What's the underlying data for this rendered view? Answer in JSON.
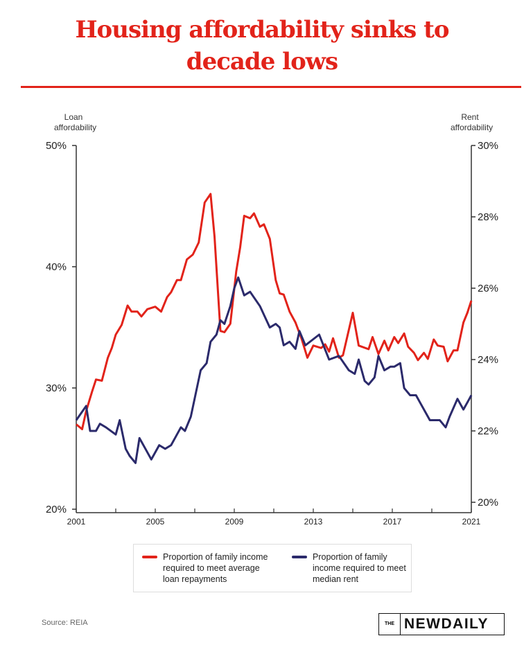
{
  "title_lines": [
    "Housing affordability sinks to",
    "decade lows"
  ],
  "colors": {
    "accent": "#e2231a",
    "loan": "#e2231a",
    "rent": "#2b2a6b",
    "axis": "#333333"
  },
  "source": "Source: REIA",
  "logo": {
    "the": "THE",
    "name": "NEWDAILY"
  },
  "chart_data": {
    "type": "line",
    "title": "Housing affordability sinks to decade lows",
    "xlabel": "",
    "x_ticks": [
      "2001",
      "2005",
      "2009",
      "2013",
      "2017",
      "2021"
    ],
    "xlim": [
      2001,
      2021
    ],
    "y_left": {
      "label": "Loan affordability",
      "ticks": [
        "50%",
        "40%",
        "30%",
        "20%"
      ],
      "lim": [
        20,
        50
      ]
    },
    "y_right": {
      "label": "Rent affordability",
      "ticks": [
        "30%",
        "28%",
        "26%",
        "24%",
        "22%",
        "20%"
      ],
      "lim": [
        20,
        30
      ]
    },
    "grid": false,
    "legend_placement": "bottom",
    "series": [
      {
        "name": "Proportion of family income required to meet average loan repayments",
        "axis": "left",
        "x": [
          2001.0,
          2001.3,
          2001.5,
          2001.8,
          2002.0,
          2002.3,
          2002.6,
          2002.8,
          2003.0,
          2003.3,
          2003.6,
          2003.8,
          2004.1,
          2004.3,
          2004.6,
          2005.0,
          2005.3,
          2005.6,
          2005.8,
          2006.1,
          2006.3,
          2006.6,
          2006.9,
          2007.2,
          2007.5,
          2007.8,
          2008.0,
          2008.3,
          2008.5,
          2008.8,
          2009.1,
          2009.3,
          2009.5,
          2009.8,
          2010.0,
          2010.3,
          2010.5,
          2010.8,
          2011.1,
          2011.3,
          2011.5,
          2011.8,
          2012.1,
          2012.4,
          2012.7,
          2013.0,
          2013.4,
          2013.6,
          2013.8,
          2014.0,
          2014.3,
          2014.5,
          2015.0,
          2015.3,
          2015.8,
          2016.0,
          2016.3,
          2016.6,
          2016.8,
          2017.1,
          2017.3,
          2017.6,
          2017.8,
          2018.1,
          2018.3,
          2018.6,
          2018.8,
          2019.1,
          2019.3,
          2019.6,
          2019.8,
          2020.1,
          2020.3,
          2020.6,
          2020.8,
          2021.0
        ],
        "y": [
          27.0,
          26.6,
          28.1,
          29.7,
          30.7,
          30.6,
          32.5,
          33.3,
          34.4,
          35.2,
          36.8,
          36.3,
          36.3,
          35.9,
          36.5,
          36.7,
          36.3,
          37.5,
          37.9,
          38.9,
          38.9,
          40.6,
          41.0,
          42.0,
          45.3,
          46.0,
          42.5,
          34.7,
          34.6,
          35.3,
          39.6,
          41.6,
          44.2,
          44.0,
          44.4,
          43.3,
          43.5,
          42.3,
          38.9,
          37.8,
          37.7,
          36.3,
          35.4,
          34.1,
          32.5,
          33.5,
          33.3,
          33.6,
          33.0,
          34.1,
          32.5,
          32.7,
          36.2,
          33.5,
          33.2,
          34.2,
          32.8,
          33.9,
          33.1,
          34.2,
          33.7,
          34.5,
          33.4,
          32.9,
          32.3,
          32.9,
          32.4,
          34.0,
          33.5,
          33.4,
          32.2,
          33.1,
          33.1,
          35.4,
          36.2,
          37.2
        ]
      },
      {
        "name": "Proportion of family income required to meet median rent",
        "axis": "right",
        "x": [
          2001.0,
          2001.5,
          2001.7,
          2002.0,
          2002.2,
          2002.5,
          2003.0,
          2003.2,
          2003.5,
          2003.7,
          2004.0,
          2004.2,
          2004.5,
          2004.8,
          2005.0,
          2005.2,
          2005.5,
          2005.8,
          2006.0,
          2006.3,
          2006.5,
          2006.8,
          2007.3,
          2007.6,
          2007.8,
          2008.1,
          2008.3,
          2008.5,
          2008.8,
          2009.0,
          2009.2,
          2009.5,
          2009.8,
          2010.3,
          2010.8,
          2011.1,
          2011.3,
          2011.5,
          2011.8,
          2012.1,
          2012.3,
          2012.6,
          2013.3,
          2013.8,
          2014.3,
          2014.8,
          2015.1,
          2015.3,
          2015.6,
          2015.8,
          2016.1,
          2016.3,
          2016.6,
          2016.9,
          2017.1,
          2017.4,
          2017.6,
          2017.9,
          2018.2,
          2018.4,
          2018.9,
          2019.1,
          2019.4,
          2019.7,
          2019.9,
          2020.3,
          2020.6,
          2020.9,
          2021.0
        ],
        "y": [
          22.3,
          22.7,
          22.0,
          22.0,
          22.2,
          22.1,
          21.9,
          22.3,
          21.5,
          21.3,
          21.1,
          21.8,
          21.5,
          21.2,
          21.4,
          21.6,
          21.5,
          21.6,
          21.8,
          22.1,
          22.0,
          22.4,
          23.7,
          23.9,
          24.5,
          24.7,
          25.1,
          25.0,
          25.5,
          26.0,
          26.3,
          25.8,
          25.9,
          25.5,
          24.9,
          25.0,
          24.9,
          24.4,
          24.5,
          24.3,
          24.8,
          24.4,
          24.7,
          24.0,
          24.1,
          23.7,
          23.6,
          24.0,
          23.4,
          23.3,
          23.5,
          24.1,
          23.7,
          23.8,
          23.8,
          23.9,
          23.2,
          23.0,
          23.0,
          22.8,
          22.3,
          22.3,
          22.3,
          22.1,
          22.4,
          22.9,
          22.6,
          22.9,
          23.0
        ]
      }
    ]
  }
}
